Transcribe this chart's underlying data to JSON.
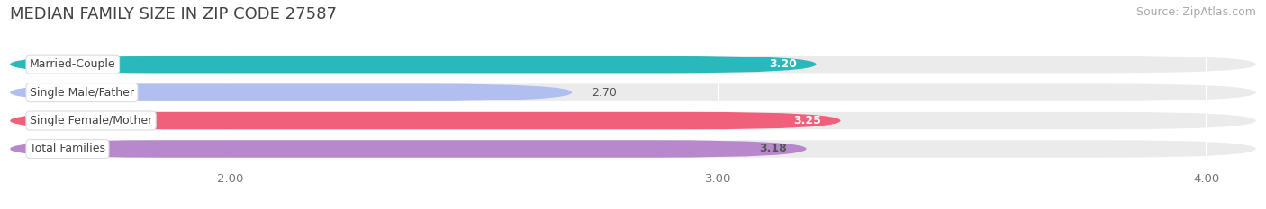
{
  "title": "MEDIAN FAMILY SIZE IN ZIP CODE 27587",
  "source": "Source: ZipAtlas.com",
  "categories": [
    "Married-Couple",
    "Single Male/Father",
    "Single Female/Mother",
    "Total Families"
  ],
  "values": [
    3.2,
    2.7,
    3.25,
    3.18
  ],
  "bar_colors": [
    "#29b8bc",
    "#b0bef0",
    "#f0607a",
    "#b888cc"
  ],
  "value_colors": [
    "#ffffff",
    "#555555",
    "#ffffff",
    "#555555"
  ],
  "xmin": 1.55,
  "xmax": 4.1,
  "xticks": [
    2.0,
    3.0,
    4.0
  ],
  "xtick_labels": [
    "2.00",
    "3.00",
    "4.00"
  ],
  "bar_height": 0.62,
  "background_color": "#ffffff",
  "bar_bg_color": "#ebebeb",
  "title_fontsize": 13,
  "source_fontsize": 9,
  "tick_fontsize": 9.5,
  "value_fontsize": 9,
  "cat_fontsize": 9
}
